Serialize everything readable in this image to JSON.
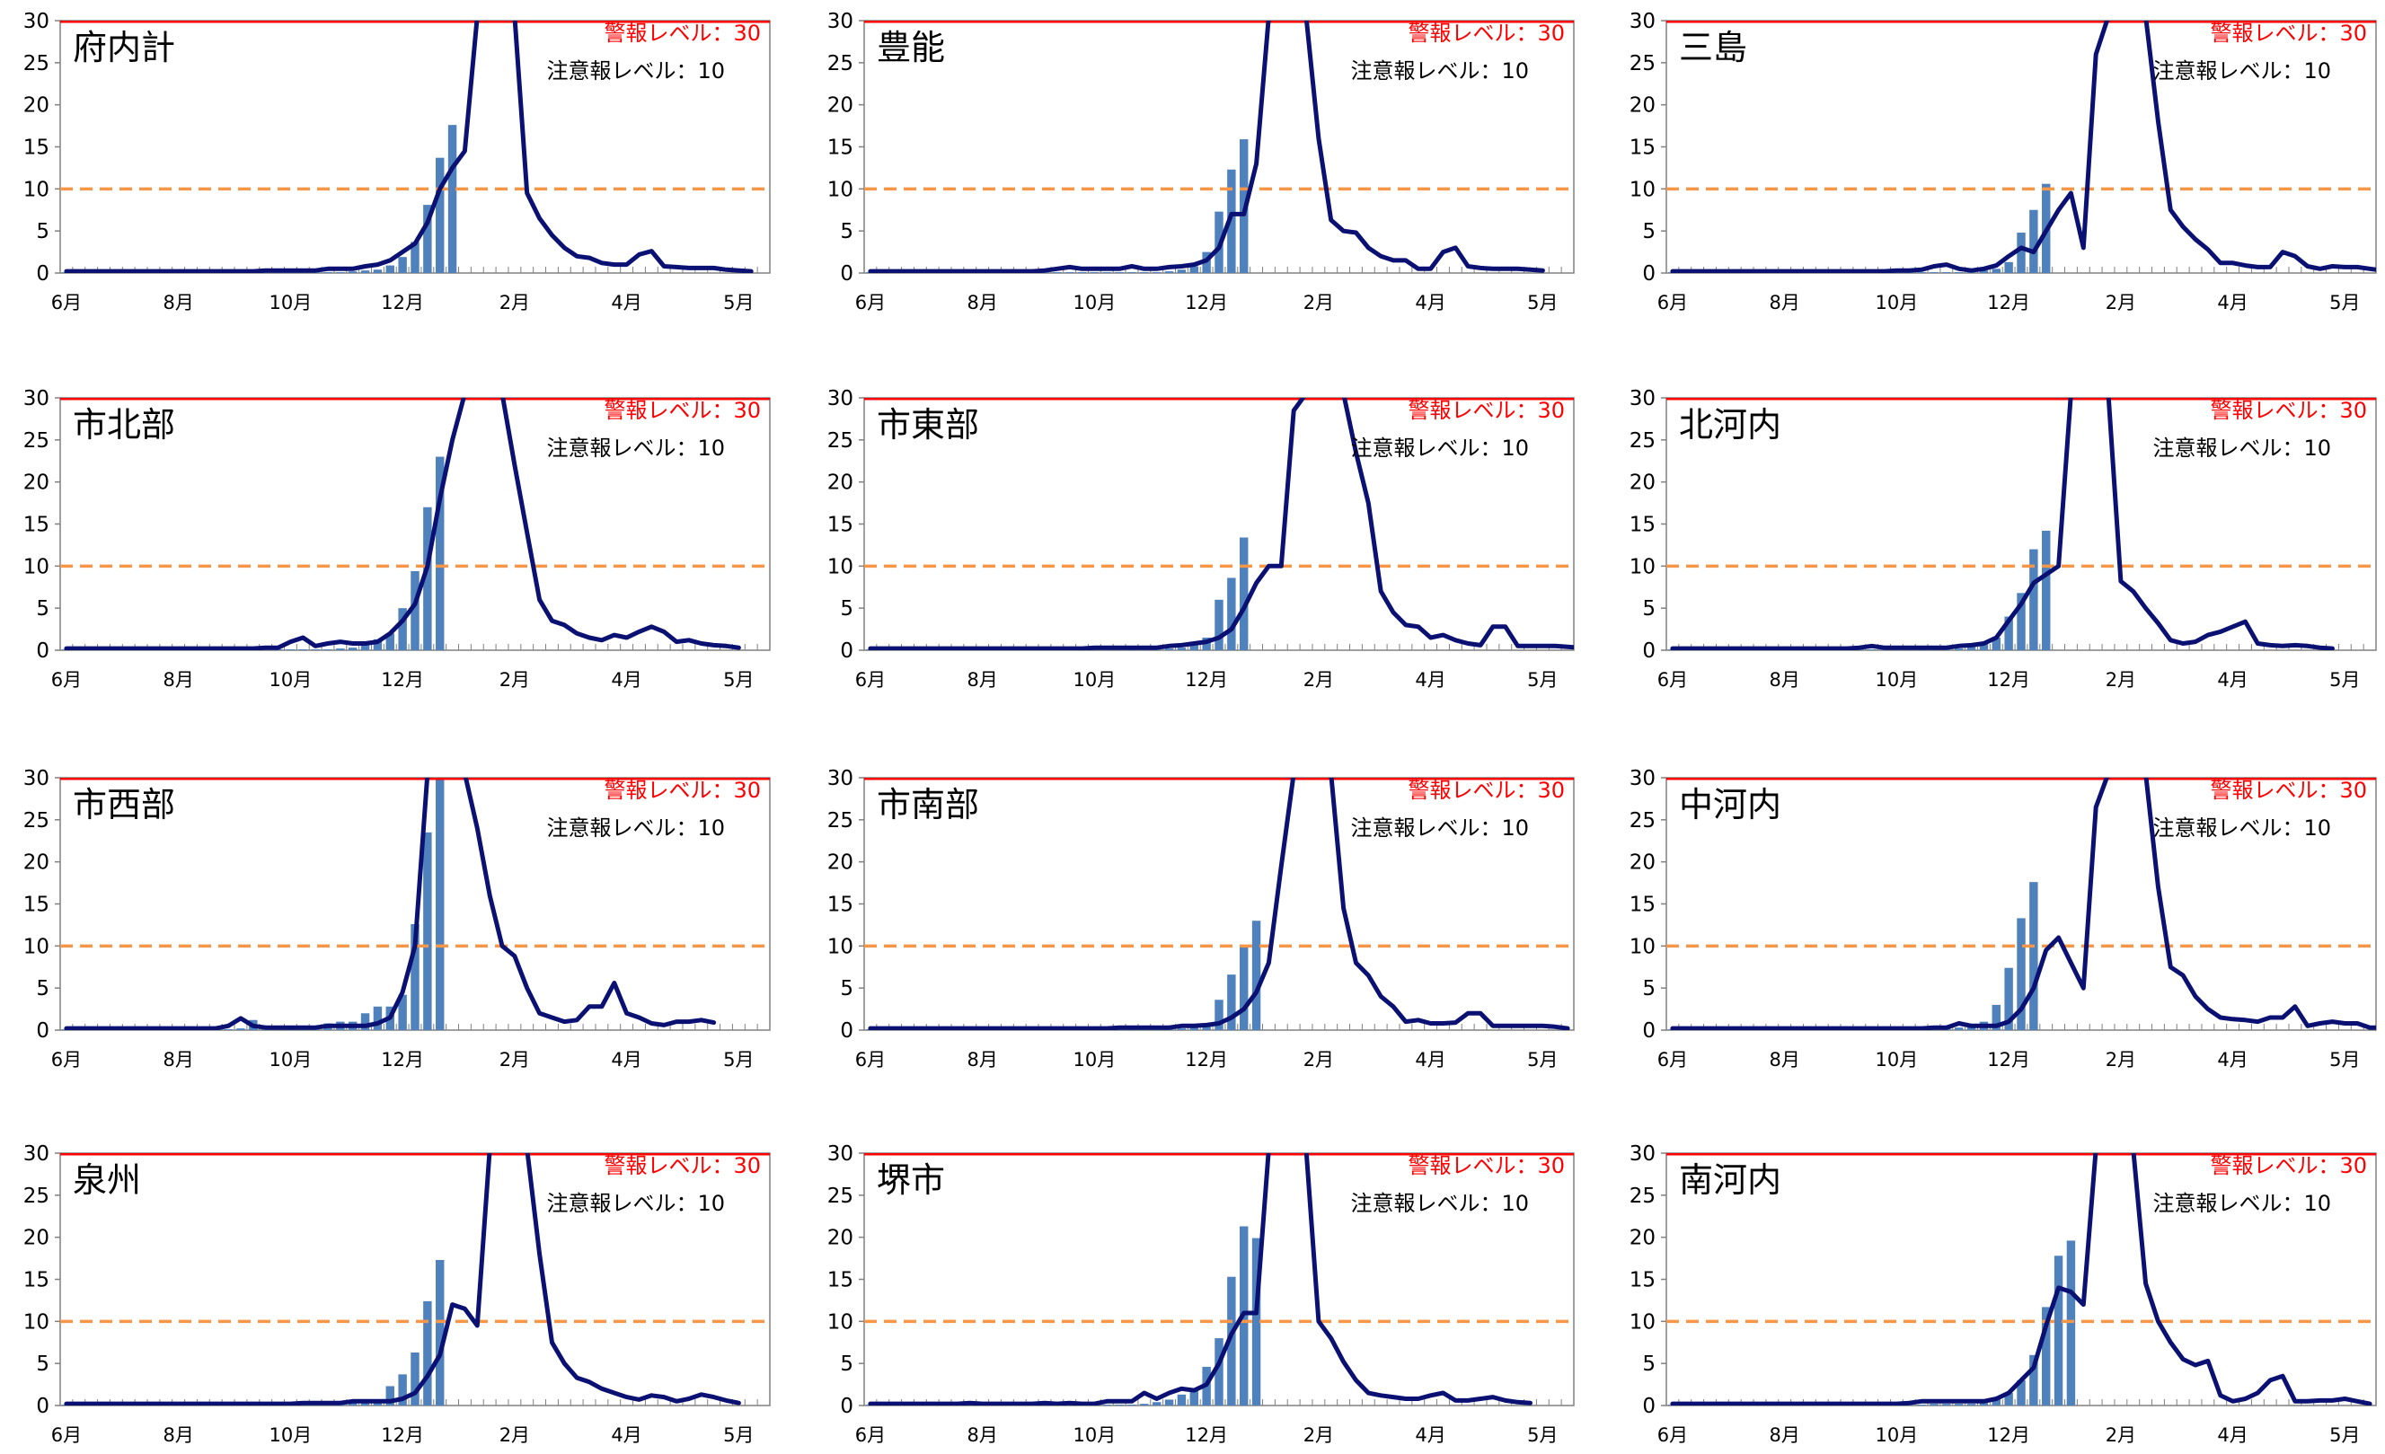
{
  "common": {
    "warning_label": "警報レベル：30",
    "caution_label": "注意報レベル：10",
    "warning_level": 30,
    "caution_level": 10,
    "ylim": [
      0,
      30
    ],
    "yticks": [
      0,
      5,
      10,
      15,
      20,
      25,
      30
    ],
    "xtick_labels": [
      "6月",
      "8月",
      "10月",
      "12月",
      "2月",
      "4月",
      "5月"
    ],
    "colors": {
      "bar": "#4f81bd",
      "line": "#0a1172",
      "warning": "#ff0000",
      "caution": "#f79646",
      "axis": "#808080"
    }
  },
  "chart_data": [
    {
      "type": "bar+line",
      "title": "府内計",
      "bars": [
        0.1,
        0.1,
        0.1,
        0.1,
        0.1,
        0.1,
        0.1,
        0.1,
        0.1,
        0.1,
        0.1,
        0.1,
        0.1,
        0.1,
        0.1,
        0.1,
        0.1,
        0.1,
        0.1,
        0.1,
        0.1,
        0.1,
        0.1,
        0.2,
        0.3,
        0.4,
        0.9,
        1.9,
        3.7,
        8.1,
        13.7,
        17.6
      ],
      "line": [
        0.2,
        0.2,
        0.2,
        0.2,
        0.2,
        0.2,
        0.2,
        0.2,
        0.2,
        0.2,
        0.2,
        0.2,
        0.2,
        0.2,
        0.2,
        0.2,
        0.3,
        0.3,
        0.3,
        0.3,
        0.3,
        0.5,
        0.5,
        0.5,
        0.8,
        1.0,
        1.5,
        2.5,
        3.5,
        6.0,
        10.0,
        12.5,
        14.5,
        30.5,
        45,
        45,
        30.5,
        9.5,
        6.5,
        4.5,
        3.0,
        2.0,
        1.8,
        1.2,
        1.0,
        1.0,
        2.2,
        2.6,
        0.8,
        0.7,
        0.6,
        0.6,
        0.6,
        0.4,
        0.3,
        0.2
      ]
    },
    {
      "type": "bar+line",
      "title": "豊能",
      "bars": [
        0.1,
        0.1,
        0.1,
        0.1,
        0.1,
        0.1,
        0.1,
        0.1,
        0.1,
        0.1,
        0.1,
        0.1,
        0.1,
        0.1,
        0.1,
        0.1,
        0.1,
        0.1,
        0.1,
        0.1,
        0.1,
        0.1,
        0.1,
        0.1,
        0.2,
        0.4,
        0.8,
        2.5,
        7.3,
        12.3,
        15.9
      ],
      "line": [
        0.2,
        0.2,
        0.2,
        0.2,
        0.2,
        0.2,
        0.2,
        0.2,
        0.2,
        0.2,
        0.2,
        0.2,
        0.2,
        0.2,
        0.3,
        0.5,
        0.7,
        0.5,
        0.5,
        0.5,
        0.5,
        0.8,
        0.5,
        0.5,
        0.7,
        0.8,
        1.0,
        1.5,
        3.0,
        7.0,
        7.0,
        13.0,
        30.5,
        45,
        45,
        30.5,
        16.0,
        6.3,
        5.0,
        4.8,
        3.0,
        2.0,
        1.5,
        1.5,
        0.5,
        0.5,
        2.5,
        3.0,
        0.8,
        0.6,
        0.5,
        0.5,
        0.5,
        0.4,
        0.3
      ]
    },
    {
      "type": "bar+line",
      "title": "三島",
      "bars": [
        0.1,
        0.1,
        0.1,
        0.1,
        0.1,
        0.1,
        0.1,
        0.1,
        0.1,
        0.1,
        0.1,
        0.1,
        0.1,
        0.1,
        0.1,
        0.1,
        0.1,
        0.1,
        0.1,
        0.1,
        0.1,
        0.1,
        0.1,
        0.1,
        0.1,
        0.3,
        0.5,
        1.3,
        4.8,
        7.5,
        10.6
      ],
      "line": [
        0.2,
        0.2,
        0.2,
        0.2,
        0.2,
        0.2,
        0.2,
        0.2,
        0.2,
        0.2,
        0.2,
        0.2,
        0.2,
        0.2,
        0.2,
        0.2,
        0.2,
        0.2,
        0.3,
        0.3,
        0.4,
        0.8,
        1.0,
        0.5,
        0.3,
        0.5,
        0.9,
        2.0,
        3.0,
        2.5,
        5.0,
        7.5,
        9.5,
        3.0,
        26.0,
        30.5,
        45,
        45,
        30.5,
        18.0,
        7.5,
        5.5,
        4.0,
        2.8,
        1.2,
        1.2,
        0.9,
        0.7,
        0.7,
        2.5,
        2.0,
        0.8,
        0.5,
        0.8,
        0.7,
        0.7,
        0.5,
        0.3
      ]
    },
    {
      "type": "bar+line",
      "title": "市北部",
      "bars": [
        0.1,
        0.1,
        0.1,
        0.1,
        0.1,
        0.1,
        0.1,
        0.1,
        0.1,
        0.1,
        0.1,
        0.1,
        0.1,
        0.1,
        0.1,
        0.1,
        0.1,
        0.1,
        0.1,
        0.1,
        0.1,
        0.1,
        0.2,
        0.3,
        0.6,
        1.3,
        2.0,
        5.0,
        9.4,
        17.0,
        23.0
      ],
      "line": [
        0.2,
        0.2,
        0.2,
        0.2,
        0.2,
        0.2,
        0.2,
        0.2,
        0.2,
        0.2,
        0.2,
        0.2,
        0.2,
        0.2,
        0.2,
        0.2,
        0.3,
        0.3,
        1.0,
        1.5,
        0.5,
        0.8,
        1.0,
        0.8,
        0.8,
        1.0,
        2.0,
        3.5,
        5.5,
        10.0,
        18.0,
        25.0,
        30.5,
        45,
        45,
        30.5,
        22.0,
        14.0,
        6.0,
        3.5,
        3.0,
        2.0,
        1.5,
        1.2,
        1.8,
        1.5,
        2.2,
        2.8,
        2.2,
        1.0,
        1.2,
        0.8,
        0.6,
        0.5,
        0.3
      ]
    },
    {
      "type": "bar+line",
      "title": "市東部",
      "bars": [
        0.1,
        0.1,
        0.1,
        0.1,
        0.1,
        0.1,
        0.1,
        0.1,
        0.1,
        0.1,
        0.1,
        0.1,
        0.1,
        0.1,
        0.1,
        0.1,
        0.1,
        0.1,
        0.1,
        0.1,
        0.1,
        0.1,
        0.1,
        0.1,
        0.2,
        0.3,
        0.6,
        1.5,
        6.0,
        8.6,
        13.4
      ],
      "line": [
        0.2,
        0.2,
        0.2,
        0.2,
        0.2,
        0.2,
        0.2,
        0.2,
        0.2,
        0.2,
        0.2,
        0.2,
        0.2,
        0.2,
        0.2,
        0.2,
        0.2,
        0.2,
        0.3,
        0.3,
        0.3,
        0.3,
        0.3,
        0.3,
        0.5,
        0.6,
        0.8,
        1.0,
        1.5,
        2.5,
        5.0,
        8.0,
        10.0,
        10.0,
        28.5,
        30.5,
        45,
        45,
        30.5,
        23.5,
        17.5,
        7.0,
        4.5,
        3.0,
        2.8,
        1.5,
        1.8,
        1.2,
        0.8,
        0.6,
        2.8,
        2.8,
        0.5,
        0.5,
        0.5,
        0.5,
        0.4,
        0.3
      ]
    },
    {
      "type": "bar+line",
      "title": "北河内",
      "bars": [
        0.1,
        0.1,
        0.1,
        0.1,
        0.1,
        0.1,
        0.1,
        0.1,
        0.1,
        0.1,
        0.1,
        0.1,
        0.1,
        0.1,
        0.1,
        0.1,
        0.1,
        0.1,
        0.1,
        0.1,
        0.1,
        0.1,
        0.1,
        0.2,
        0.5,
        0.8,
        1.5,
        4.0,
        6.8,
        12.0,
        14.2
      ],
      "line": [
        0.2,
        0.2,
        0.2,
        0.2,
        0.2,
        0.2,
        0.2,
        0.2,
        0.2,
        0.2,
        0.2,
        0.2,
        0.2,
        0.2,
        0.2,
        0.3,
        0.5,
        0.3,
        0.3,
        0.3,
        0.3,
        0.3,
        0.3,
        0.5,
        0.6,
        0.8,
        1.5,
        3.5,
        5.5,
        8.0,
        9.0,
        10.0,
        30.5,
        45,
        45,
        30.5,
        8.2,
        7.0,
        5.0,
        3.2,
        1.2,
        0.8,
        1.0,
        1.8,
        2.2,
        2.8,
        3.4,
        0.8,
        0.6,
        0.5,
        0.6,
        0.5,
        0.3,
        0.2
      ]
    },
    {
      "type": "bar+line",
      "title": "市西部",
      "bars": [
        0.1,
        0.1,
        0.1,
        0.1,
        0.1,
        0.1,
        0.1,
        0.1,
        0.1,
        0.1,
        0.1,
        0.1,
        0.1,
        0.1,
        0.2,
        1.2,
        0.3,
        0.2,
        0.2,
        0.2,
        0.5,
        0.8,
        1.0,
        1.0,
        2.0,
        2.8,
        2.8,
        4.2,
        12.6,
        23.5,
        30.0
      ],
      "line": [
        0.2,
        0.2,
        0.2,
        0.2,
        0.2,
        0.2,
        0.2,
        0.2,
        0.2,
        0.2,
        0.2,
        0.2,
        0.2,
        0.5,
        1.4,
        0.5,
        0.3,
        0.3,
        0.3,
        0.3,
        0.3,
        0.5,
        0.5,
        0.5,
        0.5,
        0.8,
        1.5,
        4.5,
        10.0,
        30.5,
        45,
        45,
        30.5,
        24.0,
        16.0,
        10.0,
        8.8,
        5.0,
        2.0,
        1.5,
        1.0,
        1.2,
        2.8,
        2.8,
        5.6,
        2.0,
        1.5,
        0.8,
        0.6,
        1.0,
        1.0,
        1.2,
        0.9
      ]
    },
    {
      "type": "bar+line",
      "title": "市南部",
      "bars": [
        0.1,
        0.1,
        0.1,
        0.1,
        0.1,
        0.1,
        0.1,
        0.1,
        0.1,
        0.1,
        0.1,
        0.1,
        0.1,
        0.1,
        0.1,
        0.1,
        0.1,
        0.1,
        0.1,
        0.1,
        0.1,
        0.1,
        0.1,
        0.1,
        0.1,
        0.2,
        0.3,
        0.8,
        3.6,
        6.6,
        10.0,
        13.0
      ],
      "line": [
        0.2,
        0.2,
        0.2,
        0.2,
        0.2,
        0.2,
        0.2,
        0.2,
        0.2,
        0.2,
        0.2,
        0.2,
        0.2,
        0.2,
        0.2,
        0.2,
        0.2,
        0.2,
        0.2,
        0.2,
        0.3,
        0.3,
        0.3,
        0.3,
        0.3,
        0.5,
        0.5,
        0.6,
        0.8,
        1.5,
        2.5,
        4.5,
        8.0,
        19.5,
        30.5,
        45,
        45,
        30.5,
        14.5,
        8.0,
        6.5,
        4.0,
        2.8,
        1.0,
        1.2,
        0.8,
        0.8,
        0.9,
        2.0,
        2.0,
        0.5,
        0.5,
        0.5,
        0.5,
        0.5,
        0.4,
        0.2
      ]
    },
    {
      "type": "bar+line",
      "title": "中河内",
      "bars": [
        0.1,
        0.1,
        0.1,
        0.1,
        0.1,
        0.1,
        0.1,
        0.1,
        0.1,
        0.1,
        0.1,
        0.1,
        0.1,
        0.1,
        0.1,
        0.1,
        0.1,
        0.1,
        0.1,
        0.1,
        0.1,
        0.1,
        0.2,
        0.3,
        0.6,
        1.0,
        3.0,
        7.4,
        13.3,
        17.6
      ],
      "line": [
        0.2,
        0.2,
        0.2,
        0.2,
        0.2,
        0.2,
        0.2,
        0.2,
        0.2,
        0.2,
        0.2,
        0.2,
        0.2,
        0.2,
        0.2,
        0.2,
        0.2,
        0.2,
        0.2,
        0.2,
        0.2,
        0.3,
        0.3,
        0.8,
        0.5,
        0.5,
        0.5,
        1.0,
        2.5,
        5.0,
        9.5,
        11.0,
        8.0,
        5.0,
        26.5,
        30.5,
        45,
        45,
        30.5,
        17.0,
        7.5,
        6.5,
        4.0,
        2.5,
        1.5,
        1.3,
        1.2,
        1.0,
        1.5,
        1.5,
        2.8,
        0.5,
        0.8,
        1.0,
        0.8,
        0.8,
        0.3,
        0.3
      ]
    },
    {
      "type": "bar+line",
      "title": "泉州",
      "bars": [
        0.1,
        0.1,
        0.1,
        0.1,
        0.1,
        0.1,
        0.1,
        0.1,
        0.1,
        0.1,
        0.1,
        0.1,
        0.1,
        0.1,
        0.1,
        0.1,
        0.1,
        0.1,
        0.1,
        0.1,
        0.1,
        0.2,
        0.3,
        0.3,
        0.3,
        0.4,
        2.3,
        3.7,
        6.3,
        12.4,
        17.3
      ],
      "line": [
        0.2,
        0.2,
        0.2,
        0.2,
        0.2,
        0.2,
        0.2,
        0.2,
        0.2,
        0.2,
        0.2,
        0.2,
        0.2,
        0.2,
        0.2,
        0.2,
        0.2,
        0.2,
        0.2,
        0.3,
        0.3,
        0.3,
        0.3,
        0.5,
        0.5,
        0.5,
        0.5,
        0.8,
        1.5,
        3.5,
        6.0,
        12.0,
        11.5,
        9.5,
        30.5,
        45,
        45,
        30.5,
        18.0,
        7.5,
        5.0,
        3.3,
        2.8,
        2.0,
        1.5,
        1.0,
        0.7,
        1.2,
        1.0,
        0.5,
        0.8,
        1.3,
        1.0,
        0.6,
        0.3
      ]
    },
    {
      "type": "bar+line",
      "title": "堺市",
      "bars": [
        0.1,
        0.1,
        0.1,
        0.1,
        0.1,
        0.1,
        0.1,
        0.1,
        0.1,
        0.1,
        0.1,
        0.1,
        0.1,
        0.1,
        0.1,
        0.1,
        0.1,
        0.1,
        0.1,
        0.1,
        0.1,
        0.1,
        0.2,
        0.4,
        0.7,
        1.3,
        2.0,
        4.6,
        8.0,
        15.3,
        21.3,
        19.9
      ],
      "line": [
        0.2,
        0.2,
        0.2,
        0.2,
        0.2,
        0.2,
        0.2,
        0.2,
        0.3,
        0.2,
        0.2,
        0.2,
        0.2,
        0.2,
        0.3,
        0.2,
        0.3,
        0.2,
        0.2,
        0.5,
        0.5,
        0.5,
        1.5,
        0.8,
        1.5,
        2.0,
        1.8,
        2.5,
        5.0,
        8.5,
        11.0,
        11.0,
        30.5,
        45,
        45,
        30.5,
        10.0,
        8.0,
        5.2,
        3.0,
        1.5,
        1.2,
        1.0,
        0.8,
        0.8,
        1.2,
        1.5,
        0.6,
        0.6,
        0.8,
        1.0,
        0.6,
        0.4,
        0.3
      ]
    },
    {
      "type": "bar+line",
      "title": "南河内",
      "bars": [
        0.1,
        0.1,
        0.1,
        0.1,
        0.1,
        0.1,
        0.1,
        0.1,
        0.1,
        0.1,
        0.1,
        0.1,
        0.1,
        0.1,
        0.1,
        0.1,
        0.1,
        0.1,
        0.1,
        0.1,
        0.1,
        0.2,
        0.2,
        0.2,
        0.2,
        0.3,
        0.8,
        1.5,
        3.0,
        6.0,
        11.7,
        17.8,
        19.6
      ],
      "line": [
        0.2,
        0.2,
        0.2,
        0.2,
        0.2,
        0.2,
        0.2,
        0.2,
        0.2,
        0.2,
        0.2,
        0.2,
        0.2,
        0.2,
        0.2,
        0.2,
        0.2,
        0.2,
        0.2,
        0.3,
        0.5,
        0.5,
        0.5,
        0.5,
        0.5,
        0.5,
        0.8,
        1.5,
        3.0,
        4.5,
        9.5,
        14.0,
        13.5,
        12.0,
        30.5,
        45,
        45,
        30.5,
        14.5,
        10.0,
        7.5,
        5.5,
        4.8,
        5.3,
        1.2,
        0.5,
        0.8,
        1.5,
        3.0,
        3.5,
        0.5,
        0.5,
        0.6,
        0.6,
        0.8,
        0.5,
        0.2
      ]
    }
  ]
}
